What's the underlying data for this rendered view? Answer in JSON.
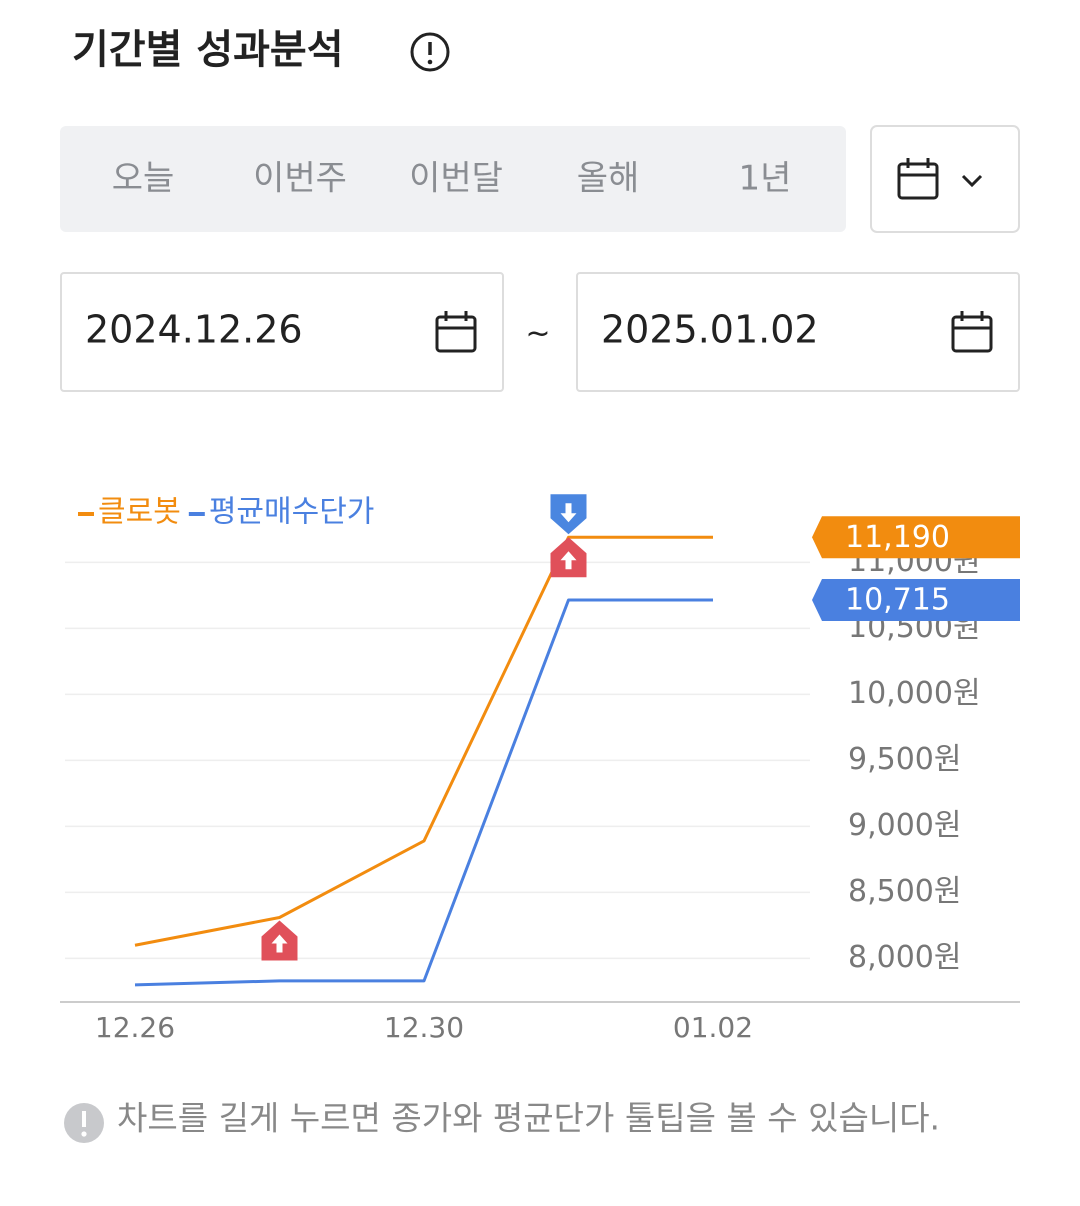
{
  "header": {
    "title": "기간별 성과분석"
  },
  "tabs": [
    "오늘",
    "이번주",
    "이번달",
    "올해",
    "1년"
  ],
  "date_range": {
    "start": "2024.12.26",
    "separator": "~",
    "end": "2025.01.02"
  },
  "chart_data": {
    "type": "line",
    "categories": [
      "12.26",
      null,
      "12.30",
      null,
      "01.02"
    ],
    "series": [
      {
        "name": "클로봇",
        "color": "#f28c0f",
        "values": [
          8100,
          8310,
          8890,
          11190,
          11190
        ],
        "value_labels": [
          null,
          null,
          null,
          null,
          "11,190"
        ]
      },
      {
        "name": "평균매수단가",
        "color": "#4a80e0",
        "values": [
          7800,
          7830,
          7830,
          10715,
          10715
        ],
        "value_labels": [
          null,
          null,
          null,
          null,
          "10,715"
        ]
      }
    ],
    "ylim": [
      7670,
      11480
    ],
    "yticks": [
      {
        "value": 8000,
        "label": "8,000원"
      },
      {
        "value": 8500,
        "label": "8,500원"
      },
      {
        "value": 9000,
        "label": "9,000원"
      },
      {
        "value": 9500,
        "label": "9,500원"
      },
      {
        "value": 10000,
        "label": "10,000원"
      },
      {
        "value": 10500,
        "label": "10,500원"
      },
      {
        "value": 11000,
        "label": "11,000원"
      }
    ],
    "grid": true
  },
  "note": "차트를 길게 누르면 종가와 평균단가 툴팁을 볼 수 있습니다."
}
